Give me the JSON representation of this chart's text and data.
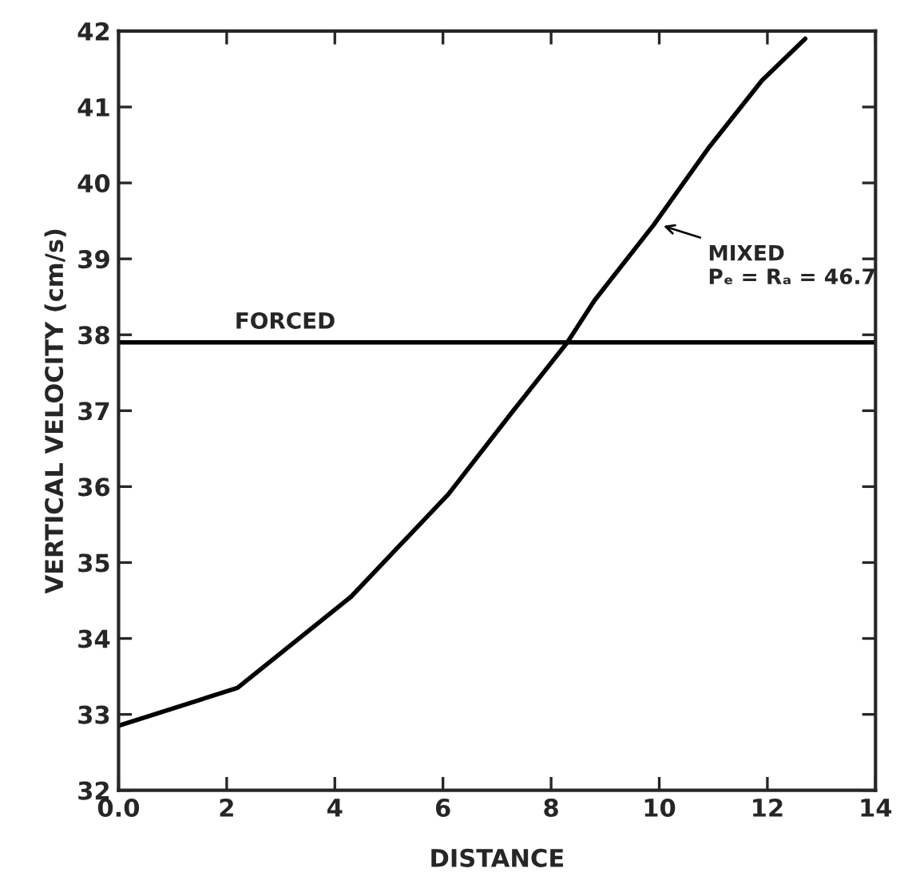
{
  "chart_data": {
    "type": "line",
    "xlabel": "DISTANCE",
    "ylabel": "VERTICAL VELOCITY (cm/s)",
    "series": [
      {
        "color": "#000000",
        "x": [
          0,
          2.2,
          4.3,
          6.1,
          7.3,
          8.3,
          8.8,
          9.9,
          10.9,
          11.9,
          12.7
        ],
        "values": [
          32.85,
          33.35,
          34.55,
          35.9,
          37.0,
          37.9,
          38.45,
          39.45,
          40.45,
          41.35,
          41.9
        ]
      }
    ],
    "xlim": [
      0,
      14
    ],
    "ylim": [
      32,
      42
    ],
    "xticks": [
      {
        "value": 0,
        "label": "0.0"
      },
      2,
      4,
      6,
      8,
      10,
      12,
      14
    ],
    "yticks": [
      32,
      33,
      34,
      35,
      36,
      37,
      38,
      39,
      40,
      41,
      42
    ],
    "ref_lines": [
      {
        "axis": "y",
        "value": 37.9,
        "label": "FORCED",
        "color": "#000000"
      }
    ],
    "annotations": [
      {
        "text": "MIXED\nPₑ = Rₐ = 46.7",
        "x": 10.0,
        "y": 39.45
      }
    ],
    "marker": "none",
    "line_style": "solid"
  }
}
